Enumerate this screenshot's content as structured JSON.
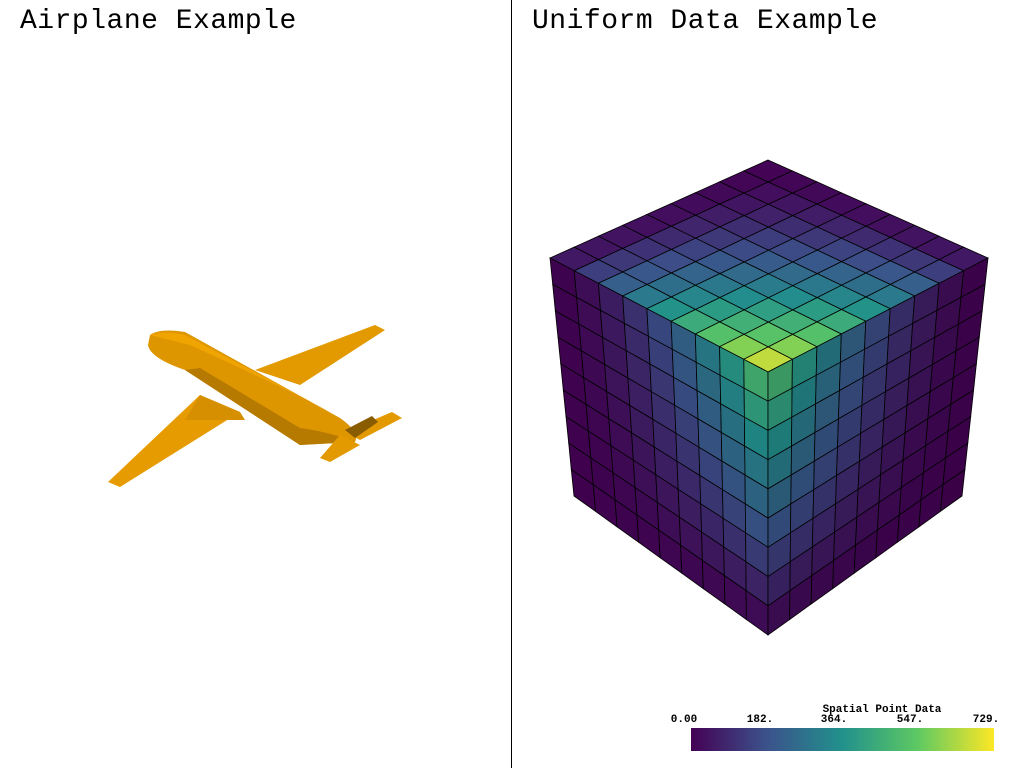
{
  "left_view": {
    "title": "Airplane Example",
    "model_color": "#e39a00"
  },
  "right_view": {
    "title": "Uniform Data Example",
    "grid_divisions": 9,
    "scalar_bar": {
      "title": "Spatial Point Data",
      "ticks": [
        "0.00",
        "182.",
        "364.",
        "547.",
        "729."
      ],
      "colormap": [
        "#440154",
        "#3b528b",
        "#21918c",
        "#5ec962",
        "#fde725"
      ]
    }
  }
}
